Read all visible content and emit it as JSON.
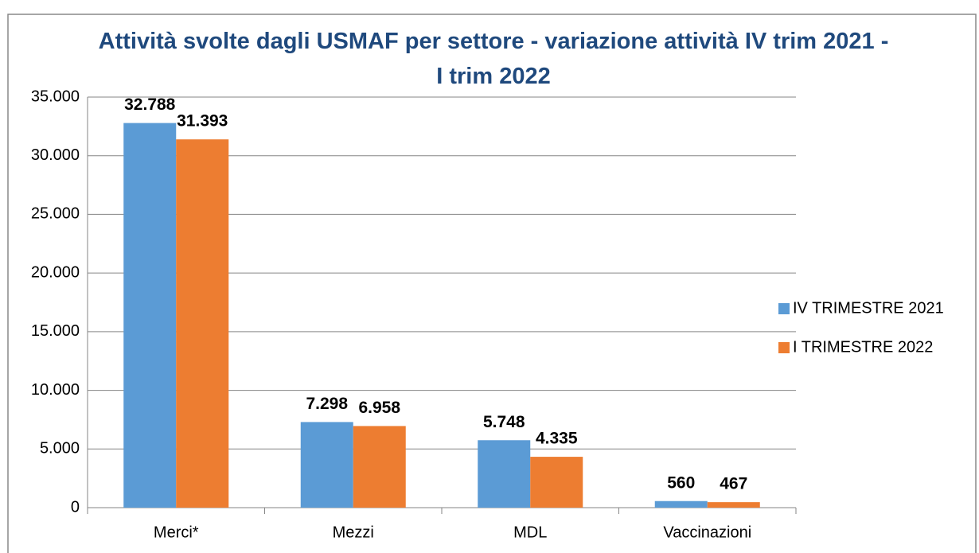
{
  "chart_data": {
    "type": "bar",
    "title": "Attività svolte dagli USMAF per settore - variazione attività  IV trim 2021 - I trim 2022",
    "categories": [
      "Merci*",
      "Mezzi",
      "MDL",
      "Vaccinazioni"
    ],
    "series": [
      {
        "name": "IV TRIMESTRE 2021",
        "color": "#5b9bd5",
        "values": [
          32788,
          7298,
          5748,
          560
        ],
        "value_labels": [
          "32.788",
          "7.298",
          "5.748",
          "560"
        ]
      },
      {
        "name": "I TRIMESTRE 2022",
        "color": "#ed7d31",
        "values": [
          31393,
          6958,
          4335,
          467
        ],
        "value_labels": [
          "31.393",
          "6.958",
          "4.335",
          "467"
        ]
      }
    ],
    "ylim": [
      0,
      35000
    ],
    "yticks": [
      0,
      {
        "value": 5000,
        "label": "5.000"
      },
      {
        "value": 10000,
        "label": "10.000"
      },
      {
        "value": 15000,
        "label": "15.000"
      },
      {
        "value": 20000,
        "label": "20.000"
      },
      {
        "value": 25000,
        "label": "25.000"
      },
      {
        "value": 30000,
        "label": "30.000"
      },
      {
        "value": 35000,
        "label": "35.000"
      }
    ],
    "grid": true,
    "legend": "right"
  }
}
